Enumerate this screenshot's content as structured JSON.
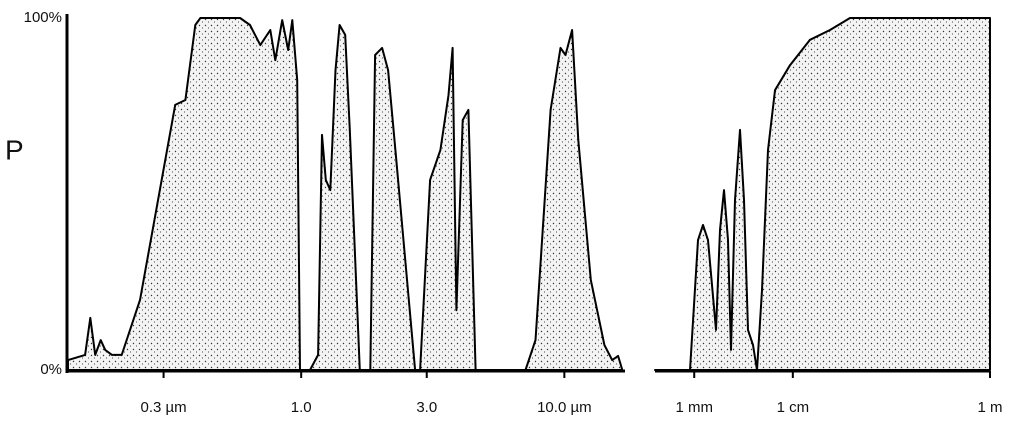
{
  "chart_data": [
    {
      "type": "area",
      "ylabel": "P",
      "color": "#000000",
      "log_x": true,
      "xlim": [
        0.13,
        17
      ],
      "ylim": [
        0,
        100
      ],
      "yticks": [
        {
          "value": 0,
          "label": "0%"
        },
        {
          "value": 100,
          "label": "100%"
        }
      ],
      "xticks": [
        {
          "value": 0.3,
          "label": "0.3 µm"
        },
        {
          "value": 1,
          "label": "1.0"
        },
        {
          "value": 3,
          "label": "3.0"
        },
        {
          "value": 10,
          "label": "10.0 µm"
        }
      ],
      "x": [
        0.13,
        0.151,
        0.158,
        0.165,
        0.173,
        0.18,
        0.191,
        0.208,
        0.244,
        0.332,
        0.363,
        0.396,
        0.414,
        0.586,
        0.639,
        0.699,
        0.763,
        0.797,
        0.847,
        0.893,
        0.925,
        0.966,
        0.99,
        1.08,
        1.16,
        1.2,
        1.24,
        1.29,
        1.35,
        1.4,
        1.47,
        1.53,
        1.67,
        1.83,
        1.91,
        2.03,
        2.14,
        2.28,
        2.71,
        2.83,
        3.09,
        3.38,
        3.63,
        3.76,
        3.89,
        4.11,
        4.32,
        4.6,
        7.12,
        7.77,
        8.87,
        9.67,
        10.1,
        10.7,
        11.3,
        12.6,
        14.2,
        15.2,
        16.0,
        16.6
      ],
      "values": [
        2.8,
        4.3,
        14.8,
        4.3,
        8.5,
        5.7,
        4.3,
        4.3,
        19.9,
        75.3,
        76.7,
        98,
        100,
        100,
        98,
        92.3,
        96.6,
        88,
        99.4,
        90.9,
        99.4,
        82.4,
        0,
        0,
        4.3,
        66.8,
        54,
        51.1,
        85.2,
        98,
        95.2,
        68.2,
        0,
        0,
        89.5,
        91.5,
        85.2,
        62.5,
        0,
        0,
        54,
        62.5,
        78.1,
        91.5,
        17,
        71,
        73.9,
        0,
        0,
        8.5,
        73.9,
        91.5,
        89.5,
        96.6,
        65.3,
        25.6,
        7.1,
        2.8,
        4,
        0
      ]
    },
    {
      "type": "area",
      "color": "#000000",
      "log_x": true,
      "xlim": [
        400,
        1000000
      ],
      "ylim": [
        0,
        100
      ],
      "xticks": [
        {
          "value": 1000,
          "label": "1 mm"
        },
        {
          "value": 10000,
          "label": "1 cm"
        },
        {
          "value": 1000000,
          "label": "1 m"
        }
      ],
      "x": [
        400,
        906,
        1092,
        1227,
        1379,
        1663,
        1826,
        2004,
        2199,
        2361,
        2590,
        2912,
        3198,
        3509,
        3945,
        4330,
        4867,
        5598,
        6594,
        9354,
        14930,
        23810,
        37990,
        1000000,
        1000000
      ],
      "values": [
        0,
        0,
        36.9,
        41.2,
        36.9,
        11.4,
        39.8,
        51.1,
        36.9,
        5.7,
        48.3,
        68.2,
        48.3,
        11.4,
        7.1,
        0,
        22.7,
        62.5,
        79.5,
        86.6,
        93.8,
        96.6,
        100,
        100,
        0
      ]
    }
  ]
}
